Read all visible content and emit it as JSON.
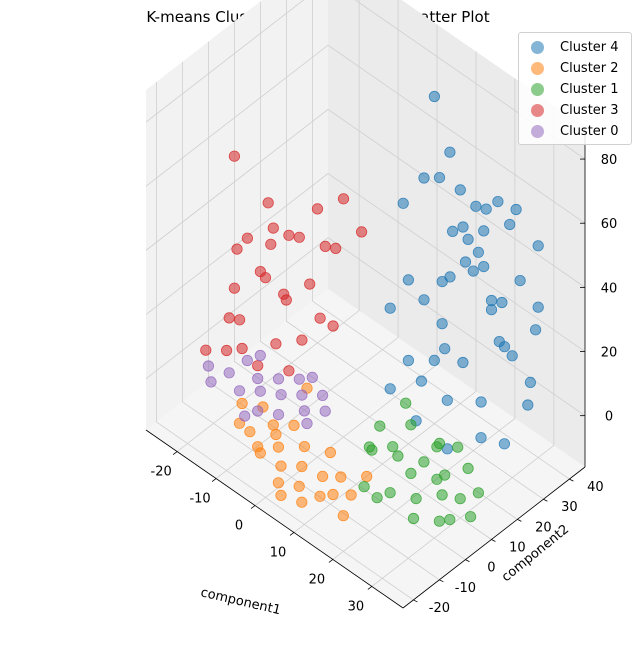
{
  "chart_data": {
    "type": "scatter",
    "projection": "3d",
    "title": "K-means Clustering 5 Clusters 3D Scatter Plot",
    "xlabel": "component1",
    "ylabel": "component2",
    "zlabel": "",
    "xlim": [
      -28,
      38
    ],
    "ylim": [
      -24,
      46
    ],
    "zlim": [
      -16,
      90
    ],
    "xticks": [
      -20,
      -10,
      0,
      10,
      20,
      30
    ],
    "yticks": [
      -20,
      -10,
      0,
      10,
      20,
      30,
      40
    ],
    "zticks": [
      0,
      20,
      40,
      60,
      80
    ],
    "grid": true,
    "legend_position": "top-right",
    "series": [
      {
        "name": "Cluster 4",
        "color": "#1f77b4",
        "points": [
          [
            10,
            30,
            86
          ],
          [
            26,
            8,
            88
          ],
          [
            37,
            14,
            86
          ],
          [
            14,
            30,
            72
          ],
          [
            22,
            22,
            72
          ],
          [
            30,
            20,
            74
          ],
          [
            33,
            27,
            72
          ],
          [
            32,
            14,
            66
          ],
          [
            28,
            32,
            60
          ],
          [
            18,
            34,
            56
          ],
          [
            30,
            40,
            50
          ],
          [
            6,
            32,
            56
          ],
          [
            20,
            34,
            50
          ],
          [
            24,
            28,
            46
          ],
          [
            16,
            34,
            44
          ],
          [
            28,
            36,
            40
          ],
          [
            12,
            38,
            42
          ],
          [
            2,
            30,
            46
          ],
          [
            20,
            30,
            40
          ],
          [
            34,
            34,
            38
          ],
          [
            8,
            40,
            36
          ],
          [
            10,
            36,
            26
          ],
          [
            30,
            30,
            22
          ],
          [
            18,
            40,
            20
          ],
          [
            6,
            32,
            18
          ],
          [
            24,
            36,
            16
          ],
          [
            14,
            28,
            12
          ],
          [
            34,
            30,
            10
          ],
          [
            26,
            24,
            8
          ],
          [
            20,
            20,
            6
          ],
          [
            12,
            22,
            4
          ],
          [
            8,
            16,
            2
          ],
          [
            30,
            18,
            4
          ],
          [
            16,
            14,
            0
          ],
          [
            24,
            14,
            -2
          ],
          [
            32,
            24,
            0
          ],
          [
            20,
            26,
            14
          ],
          [
            10,
            20,
            10
          ],
          [
            28,
            28,
            26
          ],
          [
            16,
            24,
            24
          ],
          [
            4,
            22,
            20
          ],
          [
            22,
            34,
            30
          ],
          [
            36,
            28,
            20
          ],
          [
            12,
            30,
            30
          ],
          [
            26,
            32,
            34
          ],
          [
            6,
            26,
            28
          ],
          [
            32,
            36,
            28
          ],
          [
            18,
            18,
            18
          ],
          [
            14,
            36,
            34
          ]
        ]
      },
      {
        "name": "Cluster 2",
        "color": "#ff7f0e",
        "points": [
          [
            -12,
            -12,
            -8
          ],
          [
            -8,
            -14,
            -6
          ],
          [
            -4,
            -16,
            -8
          ],
          [
            0,
            -14,
            -10
          ],
          [
            4,
            -12,
            -8
          ],
          [
            8,
            -10,
            -9
          ],
          [
            10,
            -6,
            -10
          ],
          [
            6,
            -16,
            -10
          ],
          [
            2,
            -18,
            -11
          ],
          [
            -2,
            -12,
            -7
          ],
          [
            -6,
            -8,
            -6
          ],
          [
            -10,
            -6,
            -5
          ],
          [
            -14,
            -8,
            -6
          ],
          [
            12,
            -12,
            -10
          ],
          [
            14,
            -8,
            -11
          ],
          [
            16,
            -14,
            -12
          ],
          [
            8,
            -18,
            -12
          ],
          [
            -2,
            -6,
            -4
          ],
          [
            2,
            -8,
            -6
          ],
          [
            6,
            -4,
            -7
          ],
          [
            -6,
            -14,
            -9
          ],
          [
            10,
            -14,
            -11
          ],
          [
            4,
            -20,
            -12
          ],
          [
            0,
            -4,
            8
          ],
          [
            -4,
            -10,
            -6
          ],
          [
            14,
            -2,
            -9
          ]
        ]
      },
      {
        "name": "Cluster 1",
        "color": "#2ca02c",
        "points": [
          [
            16,
            -6,
            -8
          ],
          [
            20,
            -2,
            -9
          ],
          [
            24,
            2,
            -10
          ],
          [
            28,
            6,
            -8
          ],
          [
            26,
            10,
            -6
          ],
          [
            22,
            8,
            -4
          ],
          [
            18,
            4,
            -3
          ],
          [
            14,
            0,
            -2
          ],
          [
            12,
            6,
            0
          ],
          [
            16,
            12,
            0
          ],
          [
            22,
            14,
            -2
          ],
          [
            30,
            10,
            -10
          ],
          [
            32,
            14,
            -9
          ],
          [
            28,
            16,
            -6
          ],
          [
            24,
            18,
            -4
          ],
          [
            18,
            -4,
            -11
          ],
          [
            20,
            6,
            -8
          ],
          [
            26,
            -2,
            -12
          ],
          [
            30,
            2,
            -12
          ],
          [
            14,
            8,
            -6
          ],
          [
            34,
            8,
            -11
          ],
          [
            20,
            16,
            -6
          ],
          [
            12,
            2,
            -4
          ],
          [
            24,
            10,
            -9
          ],
          [
            16,
            10,
            8
          ],
          [
            30,
            6,
            -14
          ]
        ]
      },
      {
        "name": "Cluster 3",
        "color": "#d62728",
        "points": [
          [
            -22,
            6,
            30
          ],
          [
            -18,
            10,
            34
          ],
          [
            -14,
            14,
            32
          ],
          [
            -10,
            18,
            30
          ],
          [
            -6,
            16,
            34
          ],
          [
            -16,
            4,
            24
          ],
          [
            -20,
            8,
            20
          ],
          [
            -24,
            4,
            14
          ],
          [
            -20,
            0,
            10
          ],
          [
            -14,
            8,
            18
          ],
          [
            -10,
            12,
            22
          ],
          [
            -6,
            10,
            16
          ],
          [
            -12,
            2,
            8
          ],
          [
            -18,
            -2,
            4
          ],
          [
            -22,
            -2,
            0
          ],
          [
            -24,
            2,
            6
          ],
          [
            -8,
            6,
            10
          ],
          [
            -4,
            12,
            14
          ],
          [
            -16,
            12,
            12
          ],
          [
            -20,
            12,
            26
          ],
          [
            -26,
            8,
            22
          ],
          [
            -12,
            18,
            40
          ],
          [
            -2,
            20,
            40
          ],
          [
            -8,
            22,
            44
          ],
          [
            -28,
            10,
            48
          ],
          [
            -18,
            16,
            28
          ],
          [
            -14,
            -2,
            2
          ],
          [
            -26,
            -4,
            -2
          ],
          [
            -10,
            4,
            0
          ],
          [
            -22,
            14,
            36
          ]
        ]
      },
      {
        "name": "Cluster 0",
        "color": "#9467bd",
        "points": [
          [
            -20,
            -4,
            -4
          ],
          [
            -16,
            -6,
            -5
          ],
          [
            -12,
            -4,
            -3
          ],
          [
            -8,
            -2,
            -2
          ],
          [
            -4,
            0,
            0
          ],
          [
            0,
            2,
            2
          ],
          [
            -2,
            -2,
            -2
          ],
          [
            -6,
            -6,
            -4
          ],
          [
            -10,
            -8,
            -5
          ],
          [
            -14,
            -2,
            -2
          ],
          [
            -18,
            0,
            -1
          ],
          [
            -22,
            -8,
            -6
          ],
          [
            2,
            0,
            0
          ],
          [
            -4,
            4,
            3
          ],
          [
            -10,
            0,
            0
          ],
          [
            -16,
            2,
            1
          ],
          [
            -24,
            -6,
            -4
          ],
          [
            -6,
            2,
            2
          ],
          [
            0,
            -4,
            -3
          ],
          [
            -12,
            -10,
            -7
          ]
        ]
      }
    ]
  }
}
